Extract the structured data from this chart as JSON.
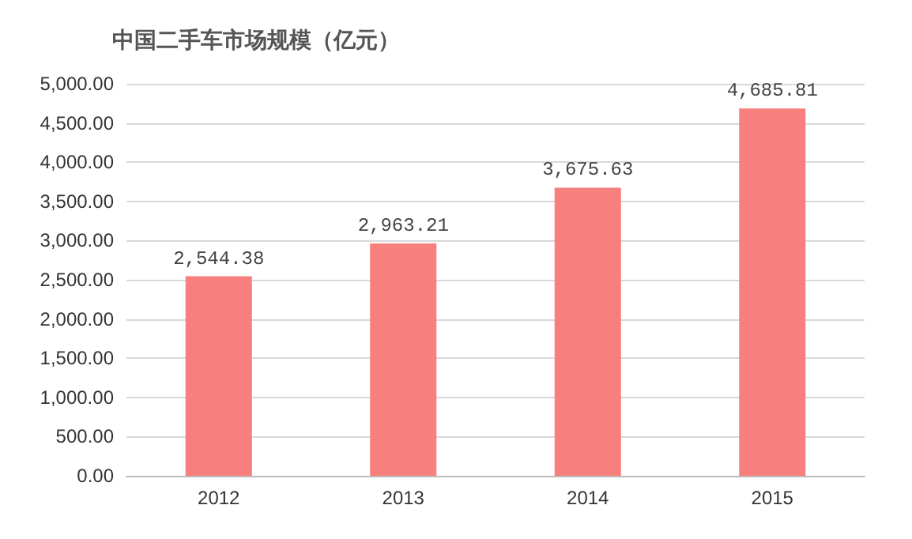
{
  "chart_data": {
    "type": "bar",
    "title": "中国二手车市场规模（亿元）",
    "categories": [
      "2012",
      "2013",
      "2014",
      "2015"
    ],
    "values": [
      2544.38,
      2963.21,
      3675.63,
      4685.81
    ],
    "value_labels": [
      "2,544.38",
      "2,963.21",
      "3,675.63",
      "4,685.81"
    ],
    "color": "#f7807e",
    "ylim": [
      0,
      5000
    ],
    "yticks": [
      {
        "value": 0,
        "label": "0.00"
      },
      {
        "value": 500,
        "label": "500.00"
      },
      {
        "value": 1000,
        "label": "1,000.00"
      },
      {
        "value": 1500,
        "label": "1,500.00"
      },
      {
        "value": 2000,
        "label": "2,000.00"
      },
      {
        "value": 2500,
        "label": "2,500.00"
      },
      {
        "value": 3000,
        "label": "3,000.00"
      },
      {
        "value": 3500,
        "label": "3,500.00"
      },
      {
        "value": 4000,
        "label": "4,000.00"
      },
      {
        "value": 4500,
        "label": "4,500.00"
      },
      {
        "value": 5000,
        "label": "5,000.00"
      }
    ],
    "grid": "y"
  }
}
